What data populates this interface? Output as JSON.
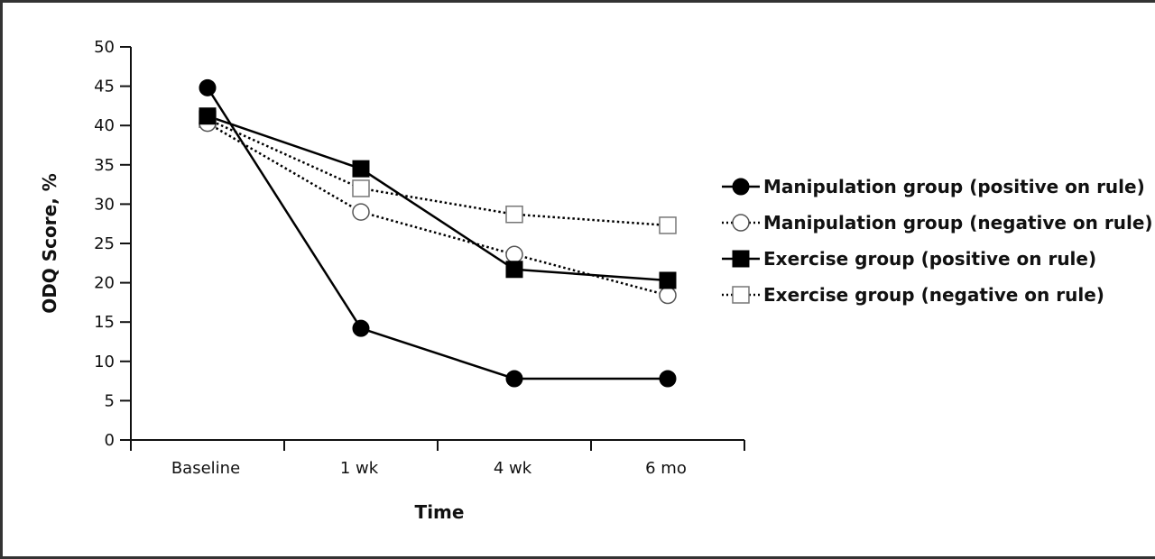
{
  "chart_data": {
    "type": "line",
    "title": "",
    "xlabel": "Time",
    "ylabel": "ODQ Score, %",
    "categories": [
      "Baseline",
      "1 wk",
      "4 wk",
      "6 mo"
    ],
    "ylim": [
      0,
      50
    ],
    "yticks": [
      0,
      5,
      10,
      15,
      20,
      25,
      30,
      35,
      40,
      45,
      50
    ],
    "grid": false,
    "legend_position": "right",
    "series": [
      {
        "name": "Manipulation group (positive on rule)",
        "marker": "filled-circle",
        "line": "solid",
        "values": [
          44.8,
          14.2,
          7.8,
          7.8
        ]
      },
      {
        "name": "Manipulation group (negative on rule)",
        "marker": "open-circle",
        "line": "dotted",
        "values": [
          40.3,
          29.0,
          23.6,
          18.4
        ]
      },
      {
        "name": "Exercise group (positive on rule)",
        "marker": "filled-square",
        "line": "solid",
        "values": [
          41.2,
          34.5,
          21.7,
          20.3
        ]
      },
      {
        "name": "Exercise group (negative on rule)",
        "marker": "open-square",
        "line": "dotted",
        "values": [
          40.8,
          32.0,
          28.7,
          27.3
        ]
      }
    ]
  }
}
